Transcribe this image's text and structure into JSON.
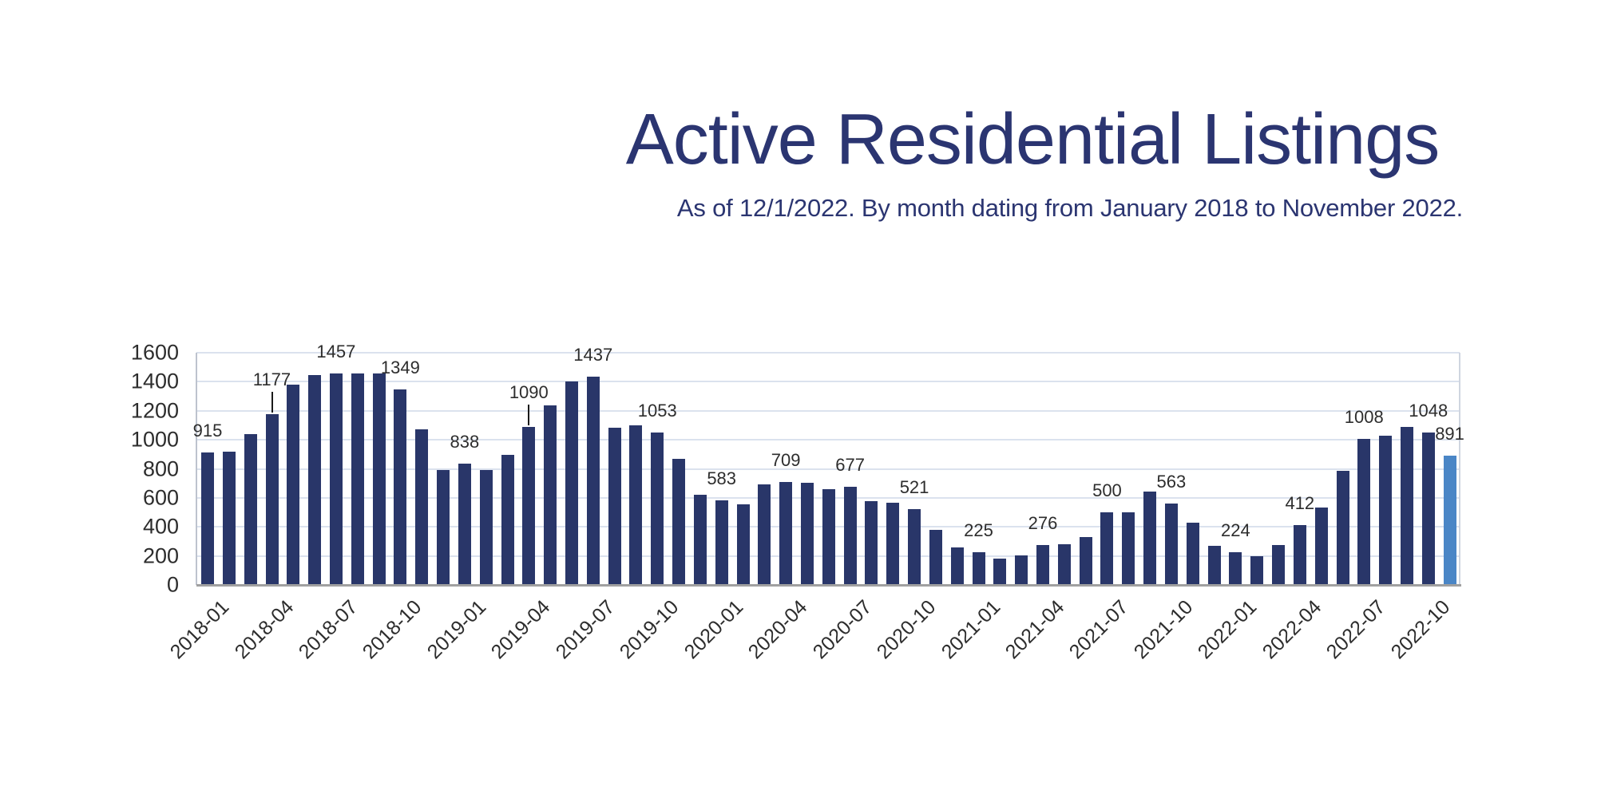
{
  "header": {
    "title": "Active Residential Listings",
    "subtitle": "As of 12/1/2022. By month dating from January 2018 to November 2022."
  },
  "chart_data": {
    "type": "bar",
    "title": "Active Residential Listings",
    "subtitle": "As of 12/1/2022. By month dating from January 2018 to November 2022.",
    "xlabel": "",
    "ylabel": "",
    "ylim": [
      0,
      1600
    ],
    "yticks": [
      0,
      200,
      400,
      600,
      800,
      1000,
      1200,
      1400,
      1600
    ],
    "grid": true,
    "legend": false,
    "x": [
      "2018-01",
      "2018-02",
      "2018-03",
      "2018-04",
      "2018-05",
      "2018-06",
      "2018-07",
      "2018-08",
      "2018-09",
      "2018-10",
      "2018-11",
      "2018-12",
      "2019-01",
      "2019-02",
      "2019-03",
      "2019-04",
      "2019-05",
      "2019-06",
      "2019-07",
      "2019-08",
      "2019-09",
      "2019-10",
      "2019-11",
      "2019-12",
      "2020-01",
      "2020-02",
      "2020-03",
      "2020-04",
      "2020-05",
      "2020-06",
      "2020-07",
      "2020-08",
      "2020-09",
      "2020-10",
      "2020-11",
      "2020-12",
      "2021-01",
      "2021-02",
      "2021-03",
      "2021-04",
      "2021-05",
      "2021-06",
      "2021-07",
      "2021-08",
      "2021-09",
      "2021-10",
      "2021-11",
      "2021-12",
      "2022-01",
      "2022-02",
      "2022-03",
      "2022-04",
      "2022-05",
      "2022-06",
      "2022-07",
      "2022-08",
      "2022-09",
      "2022-10",
      "2022-11"
    ],
    "values": [
      915,
      917,
      1040,
      1177,
      1380,
      1445,
      1457,
      1458,
      1458,
      1349,
      1072,
      790,
      838,
      793,
      898,
      1090,
      1235,
      1400,
      1437,
      1085,
      1102,
      1053,
      870,
      620,
      583,
      555,
      693,
      709,
      703,
      658,
      677,
      580,
      565,
      521,
      378,
      258,
      225,
      183,
      203,
      276,
      280,
      332,
      500,
      498,
      645,
      563,
      430,
      270,
      224,
      199,
      274,
      412,
      533,
      785,
      1008,
      1028,
      1087,
      1048,
      891
    ],
    "xtick_labels": [
      "2018-01",
      "2018-04",
      "2018-07",
      "2018-10",
      "2019-01",
      "2019-04",
      "2019-07",
      "2019-10",
      "2020-01",
      "2020-04",
      "2020-07",
      "2020-10",
      "2021-01",
      "2021-04",
      "2021-07",
      "2021-10",
      "2022-01",
      "2022-04",
      "2022-07",
      "2022-10"
    ],
    "labeled_months": [
      "2018-01",
      "2018-04",
      "2018-07",
      "2018-10",
      "2019-01",
      "2019-04",
      "2019-07",
      "2019-10",
      "2020-01",
      "2020-04",
      "2020-07",
      "2020-10",
      "2021-01",
      "2021-04",
      "2021-07",
      "2021-10",
      "2022-01",
      "2022-04",
      "2022-07",
      "2022-10",
      "2022-11"
    ],
    "leader_line_months": [
      "2018-04",
      "2019-04"
    ],
    "highlight_month": "2022-11",
    "colors": {
      "bar": "#293669",
      "highlight_bar": "#4a86c6",
      "gridline": "#dbe2ee",
      "axis_bottom": "#a0a0a0",
      "axis_left": "#bdc3ce",
      "axis_right": "#cfd5e0",
      "tick_text": "#2d2d2d",
      "data_label_text": "#2d2d2d",
      "title_text": "#2b3571"
    }
  }
}
